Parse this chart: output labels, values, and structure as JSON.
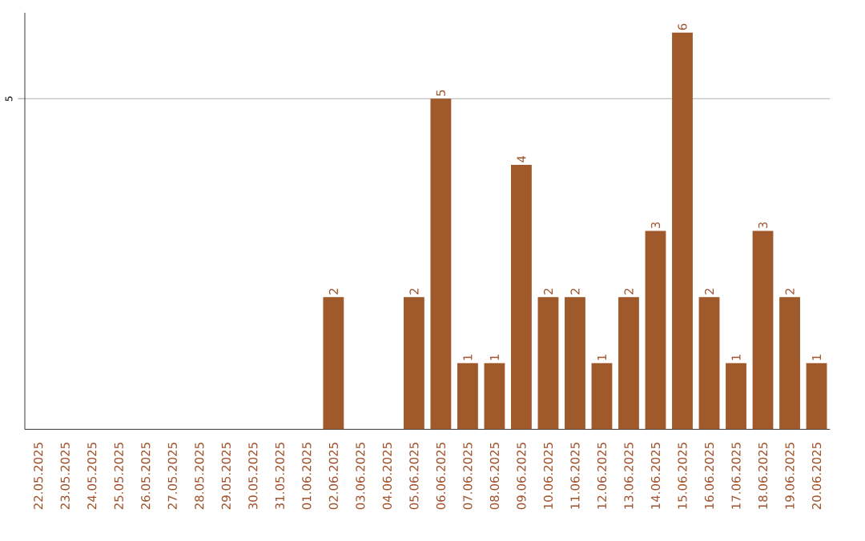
{
  "chart_data": {
    "type": "bar",
    "categories": [
      "22.05.2025",
      "23.05.2025",
      "24.05.2025",
      "25.05.2025",
      "26.05.2025",
      "27.05.2025",
      "28.05.2025",
      "29.05.2025",
      "30.05.2025",
      "31.05.2025",
      "01.06.2025",
      "02.06.2025",
      "03.06.2025",
      "04.06.2025",
      "05.06.2025",
      "06.06.2025",
      "07.06.2025",
      "08.06.2025",
      "09.06.2025",
      "10.06.2025",
      "11.06.2025",
      "12.06.2025",
      "13.06.2025",
      "14.06.2025",
      "15.06.2025",
      "16.06.2025",
      "17.06.2025",
      "18.06.2025",
      "19.06.2025",
      "20.06.2025"
    ],
    "values": [
      0,
      0,
      0,
      0,
      0,
      0,
      0,
      0,
      0,
      0,
      0,
      2,
      0,
      0,
      2,
      5,
      1,
      1,
      4,
      2,
      2,
      1,
      2,
      3,
      6,
      2,
      1,
      3,
      2,
      1
    ],
    "value_labels": [
      null,
      null,
      null,
      null,
      null,
      null,
      null,
      null,
      null,
      null,
      null,
      "2",
      null,
      null,
      "2",
      "5",
      "1",
      "1",
      "4",
      "2",
      "2",
      "1",
      "2",
      "3",
      "6",
      "2",
      "1",
      "3",
      "2",
      "1"
    ],
    "color": "#a0592a",
    "ylim": [
      0,
      6.3
    ],
    "yticks": [
      5
    ],
    "grid": "y"
  }
}
